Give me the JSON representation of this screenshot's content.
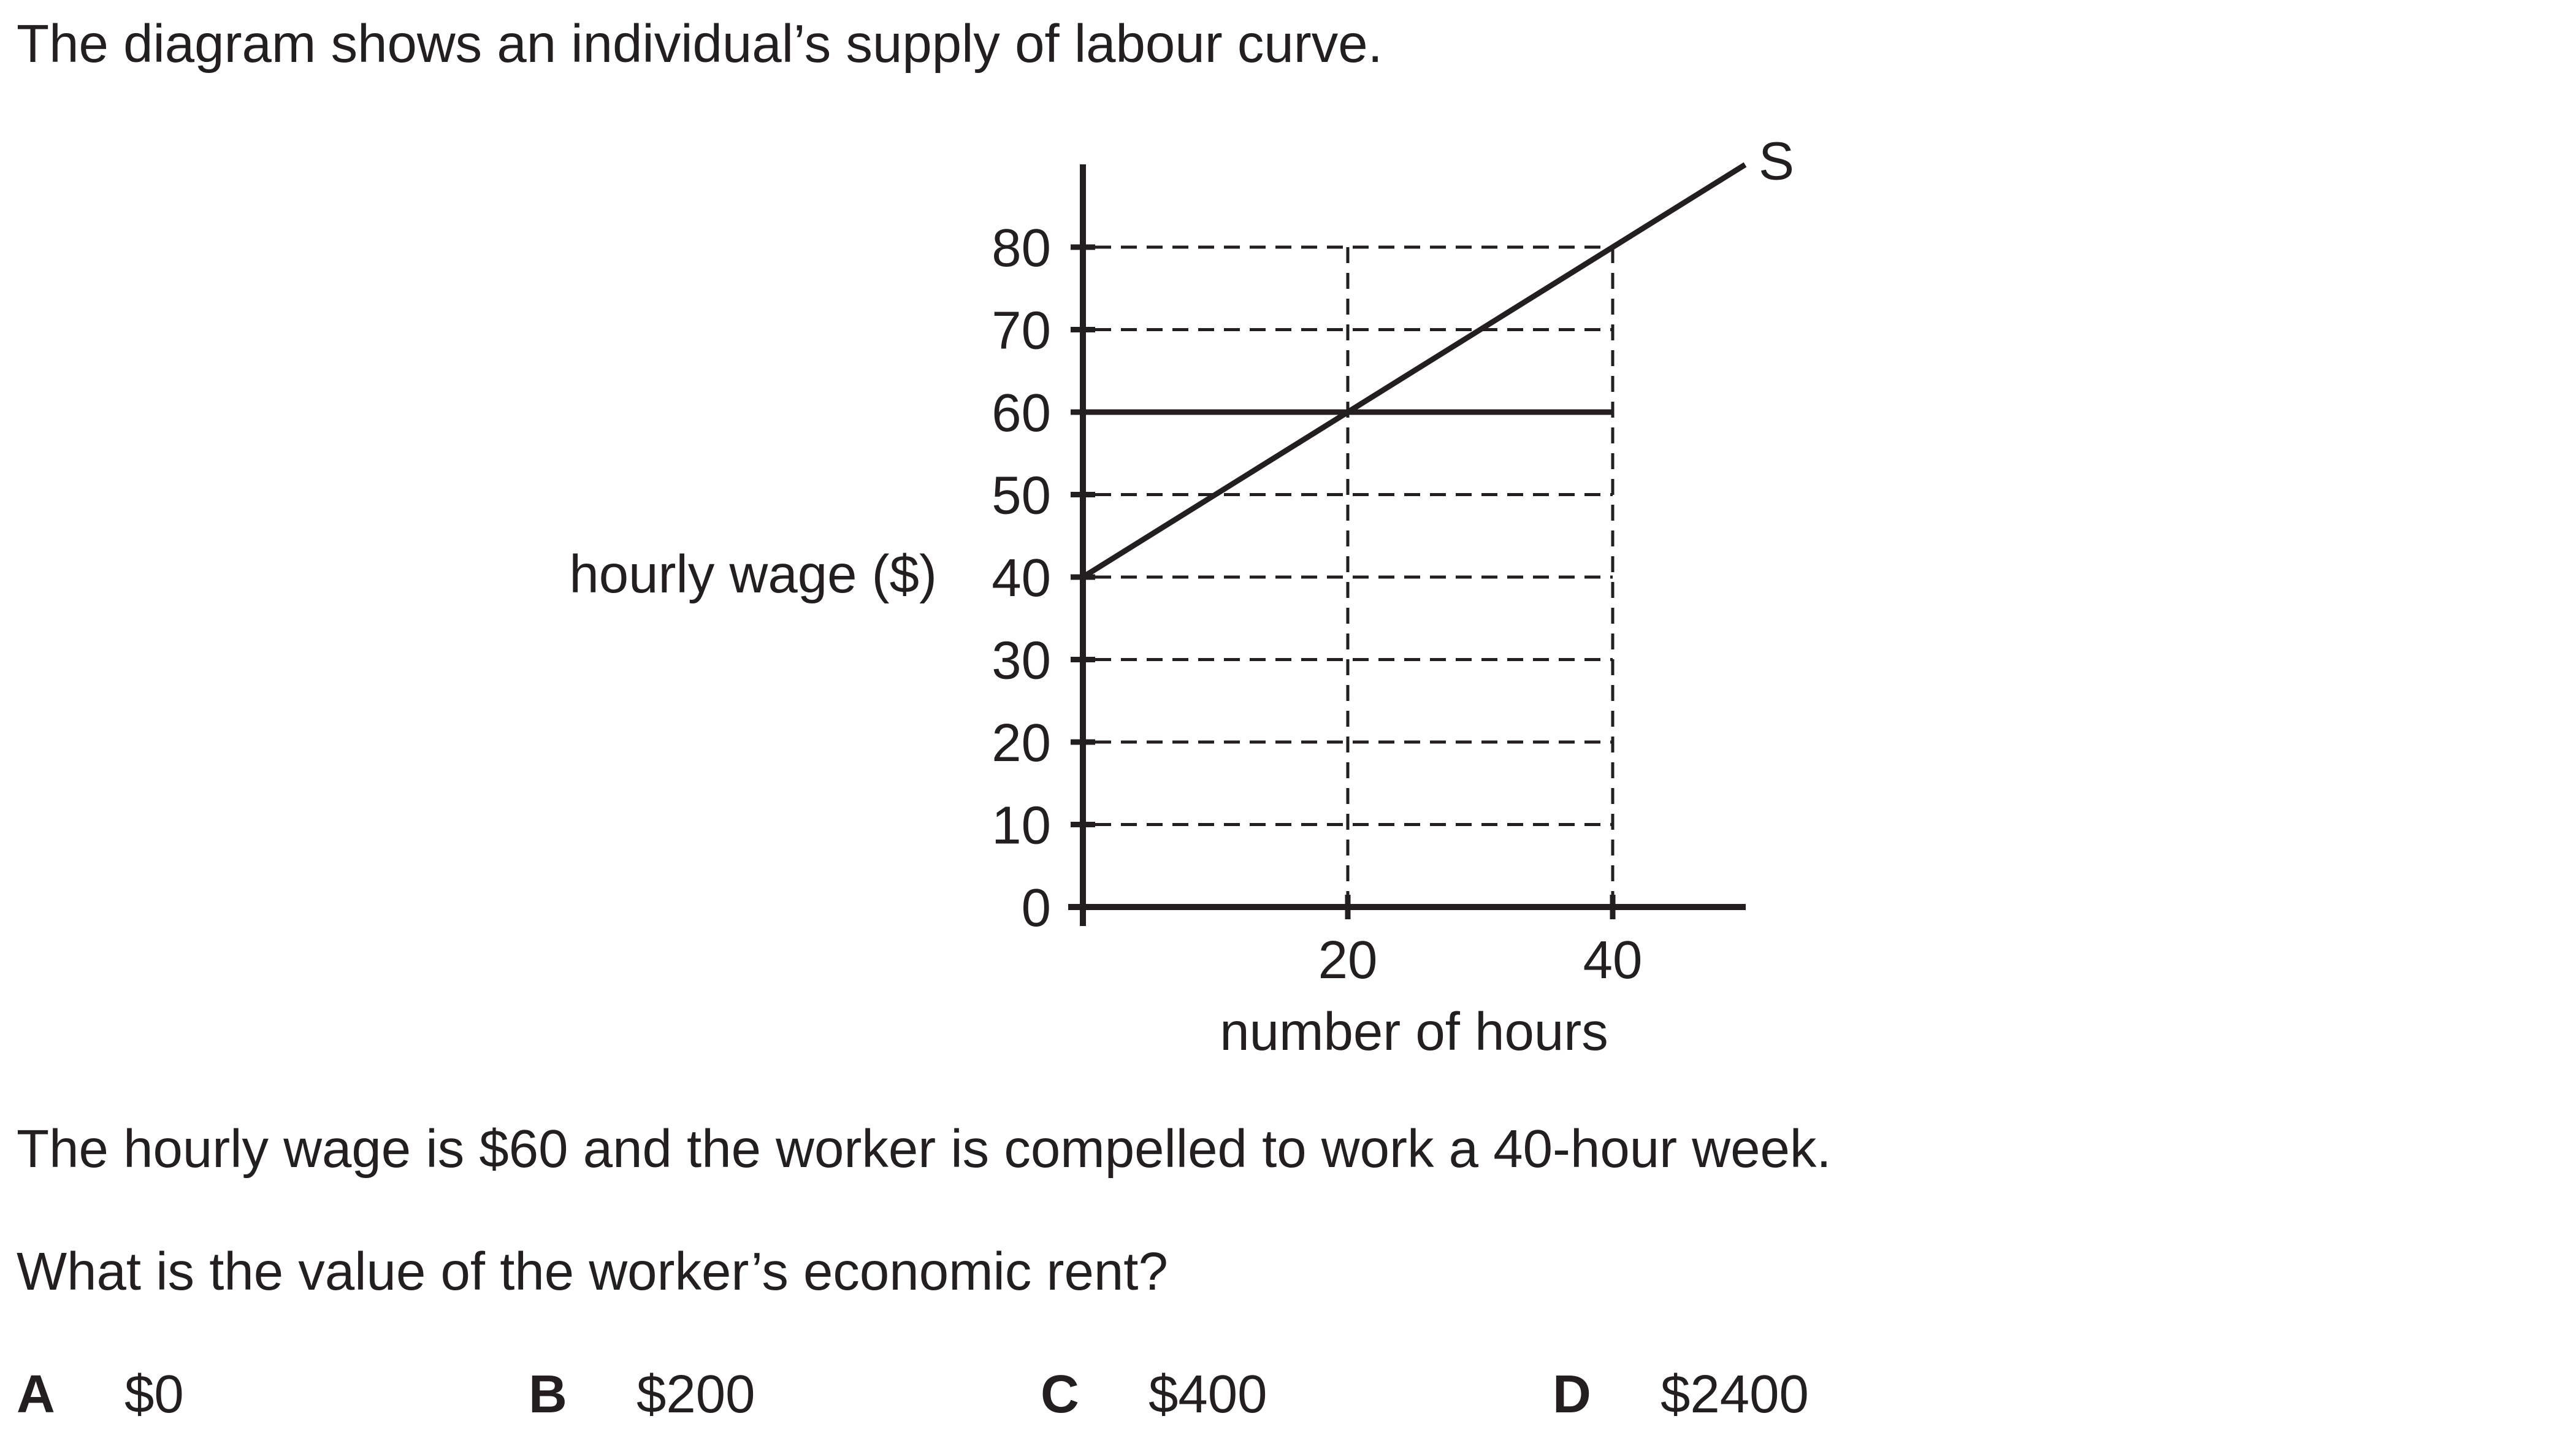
{
  "question": {
    "intro": "The diagram shows an individual’s supply of labour curve.",
    "info": "The hourly wage is $60 and the worker is compelled to work a 40-hour week.",
    "prompt": "What is the value of the worker’s economic rent?",
    "options": [
      {
        "letter": "A",
        "value": "$0"
      },
      {
        "letter": "B",
        "value": "$200"
      },
      {
        "letter": "C",
        "value": "$400"
      },
      {
        "letter": "D",
        "value": "$2400"
      }
    ]
  },
  "colors": {
    "ink": "#231f20",
    "background": "#ffffff"
  },
  "chart_data": {
    "type": "line",
    "xlabel": "number of hours",
    "ylabel": "hourly wage ($)",
    "x_ticks": [
      20,
      40
    ],
    "y_ticks": [
      0,
      10,
      20,
      30,
      40,
      50,
      60,
      70,
      80
    ],
    "xlim": [
      0,
      50
    ],
    "ylim": [
      0,
      80
    ],
    "grid": "dashed horizontal lines at each wage tick, dashed vertical lines at 20 and 40 hours",
    "series": [
      {
        "name": "S",
        "x": [
          0,
          40,
          50
        ],
        "y": [
          40,
          80,
          90
        ]
      }
    ],
    "reference_lines": [
      {
        "type": "horizontal",
        "y": 60,
        "x_range": [
          0,
          40
        ],
        "style": "solid"
      }
    ]
  }
}
